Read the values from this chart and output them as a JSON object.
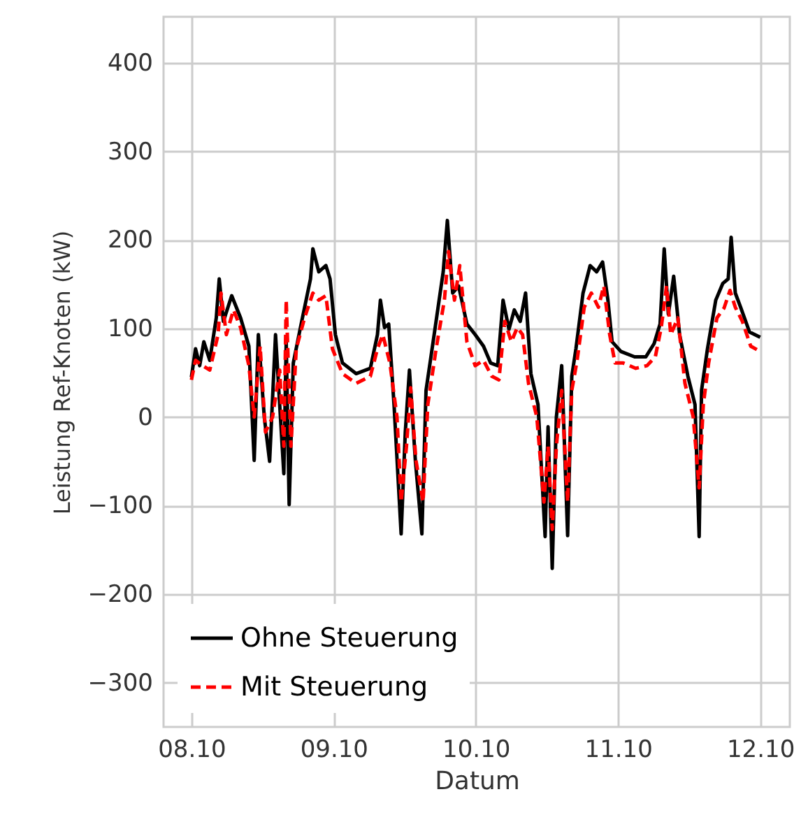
{
  "chart_data": {
    "type": "line",
    "xlabel": "Datum",
    "ylabel": "Leistung Ref-Knoten (kW)",
    "xlim": [
      "--10-07T19:18",
      "--10-12T05:00"
    ],
    "xticks": [
      {
        "value": "--10-08",
        "label": "08.10"
      },
      {
        "value": "--10-09",
        "label": "09.10"
      },
      {
        "value": "--10-10",
        "label": "10.10"
      },
      {
        "value": "--10-11",
        "label": "11.10"
      },
      {
        "value": "--10-12",
        "label": "12.10"
      }
    ],
    "ylim": [
      -350,
      452
    ],
    "yticks": [
      -300,
      -200,
      -100,
      0,
      100,
      200,
      300,
      400
    ],
    "grid": true,
    "legend": "bottom left",
    "series": [
      {
        "name": "Ohne Steuerung",
        "color": "#000000",
        "line_style": "solid",
        "x": [
          "--10-08T00:00",
          "--10-08T00:42",
          "--10-08T01:24",
          "--10-08T02:06",
          "--10-08T03:06",
          "--10-08T04:12",
          "--10-08T04:42",
          "--10-08T05:24",
          "--10-08T06:48",
          "--10-08T08:18",
          "--10-08T09:42",
          "--10-08T10:36",
          "--10-08T11:18",
          "--10-08T12:18",
          "--10-08T13:12",
          "--10-08T14:12",
          "--10-08T14:54",
          "--10-08T15:36",
          "--10-08T16:00",
          "--10-08T16:30",
          "--10-08T17:12",
          "--10-08T18:24",
          "--10-08T20:06",
          "--10-08T20:30",
          "--10-08T21:30",
          "--10-08T22:42",
          "--10-08T23:24",
          "--10-09T00:18",
          "--10-09T01:30",
          "--10-09T03:48",
          "--10-09T06:12",
          "--10-09T07:24",
          "--10-09T07:54",
          "--10-09T08:36",
          "--10-09T09:18",
          "--10-09T10:12",
          "--10-09T11:24",
          "--10-09T12:06",
          "--10-09T12:48",
          "--10-09T13:48",
          "--10-09T14:54",
          "--10-09T15:36",
          "--10-09T16:48",
          "--10-09T18:30",
          "--10-09T19:12",
          "--10-09T20:06",
          "--10-09T21:06",
          "--10-09T22:30",
          "--10-09T23:54",
          "--10-10T01:18",
          "--10-10T02:30",
          "--10-10T03:42",
          "--10-10T04:36",
          "--10-10T05:36",
          "--10-10T06:30",
          "--10-10T07:30",
          "--10-10T08:24",
          "--10-10T09:18",
          "--10-10T10:30",
          "--10-10T11:42",
          "--10-10T12:12",
          "--10-10T12:54",
          "--10-10T13:36",
          "--10-10T14:30",
          "--10-10T15:30",
          "--10-10T16:12",
          "--10-10T16:54",
          "--10-10T18:06",
          "--10-10T19:18",
          "--10-10T20:24",
          "--10-10T21:24",
          "--10-10T22:18",
          "--10-10T23:00",
          "--10-11T00:30",
          "--10-11T02:48",
          "--10-11T04:42",
          "--10-11T06:06",
          "--10-11T07:06",
          "--10-11T07:48",
          "--10-11T08:30",
          "--10-11T09:24",
          "--10-11T10:24",
          "--10-11T11:48",
          "--10-11T13:00",
          "--10-11T13:42",
          "--10-11T14:06",
          "--10-11T15:06",
          "--10-11T16:30",
          "--10-11T17:42",
          "--10-11T18:36",
          "--10-11T19:06",
          "--10-11T19:48",
          "--10-11T20:42",
          "--10-11T22:12",
          "--10-12T00:00"
        ],
        "values": [
          45,
          77,
          58,
          85,
          64,
          112,
          156,
          108,
          137,
          112,
          80,
          -49,
          93,
          0,
          -50,
          93,
          14,
          -64,
          85,
          -99,
          61,
          101,
          156,
          190,
          164,
          171,
          156,
          93,
          61,
          49,
          55,
          93,
          132,
          101,
          105,
          14,
          -132,
          -17,
          53,
          -49,
          -132,
          30,
          85,
          164,
          222,
          140,
          148,
          105,
          93,
          80,
          61,
          58,
          132,
          99,
          121,
          108,
          140,
          49,
          14,
          -135,
          -11,
          -171,
          0,
          58,
          -134,
          46,
          77,
          140,
          171,
          164,
          175,
          132,
          85,
          74,
          68,
          68,
          83,
          105,
          190,
          116,
          159,
          93,
          46,
          14,
          -135,
          30,
          77,
          132,
          151,
          156,
          203,
          140,
          124,
          96,
          90
        ]
      },
      {
        "name": "Mit Steuerung",
        "color": "#ff0000",
        "line_style": "dashed",
        "x": [
          "--10-08T00:00",
          "--10-08T00:42",
          "--10-08T01:54",
          "--10-08T03:06",
          "--10-08T04:30",
          "--10-08T05:00",
          "--10-08T05:54",
          "--10-08T07:06",
          "--10-08T08:18",
          "--10-08T09:42",
          "--10-08T10:36",
          "--10-08T11:36",
          "--10-08T12:30",
          "--10-08T13:42",
          "--10-08T14:54",
          "--10-08T15:36",
          "--10-08T16:00",
          "--10-08T16:48",
          "--10-08T17:42",
          "--10-08T19:06",
          "--10-08T20:30",
          "--10-08T21:30",
          "--10-08T22:42",
          "--10-08T23:48",
          "--10-09T01:30",
          "--10-09T03:48",
          "--10-09T06:12",
          "--10-09T07:24",
          "--10-09T08:18",
          "--10-09T09:30",
          "--10-09T10:42",
          "--10-09T11:24",
          "--10-09T12:18",
          "--10-09T13:00",
          "--10-09T13:54",
          "--10-09T15:06",
          "--10-09T15:54",
          "--10-09T17:18",
          "--10-09T18:42",
          "--10-09T19:24",
          "--10-09T20:24",
          "--10-09T21:18",
          "--10-09T22:30",
          "--10-09T23:54",
          "--10-10T01:18",
          "--10-10T02:42",
          "--10-10T03:54",
          "--10-10T04:54",
          "--10-10T06:00",
          "--10-10T07:00",
          "--10-10T07:54",
          "--10-10T08:54",
          "--10-10T10:18",
          "--10-10T11:30",
          "--10-10T12:12",
          "--10-10T12:54",
          "--10-10T13:36",
          "--10-10T14:30",
          "--10-10T15:30",
          "--10-10T16:12",
          "--10-10T17:06",
          "--10-10T18:18",
          "--10-10T19:30",
          "--10-10T20:42",
          "--10-10T21:36",
          "--10-10T22:36",
          "--10-10T23:30",
          "--10-11T00:54",
          "--10-11T03:00",
          "--10-11T04:54",
          "--10-11T06:18",
          "--10-11T07:18",
          "--10-11T08:12",
          "--10-11T08:54",
          "--10-11T10:06",
          "--10-11T11:18",
          "--10-11T12:42",
          "--10-11T13:42",
          "--10-11T14:24",
          "--10-11T15:18",
          "--10-11T16:42",
          "--10-11T17:54",
          "--10-11T18:54",
          "--10-11T19:48",
          "--10-11T21:00",
          "--10-11T22:24",
          "--10-12T00:00"
        ],
        "values": [
          42,
          64,
          58,
          53,
          93,
          140,
          93,
          121,
          101,
          58,
          0,
          80,
          -17,
          0,
          53,
          -33,
          132,
          -33,
          77,
          112,
          140,
          132,
          137,
          77,
          49,
          38,
          46,
          77,
          93,
          61,
          0,
          -96,
          -33,
          33,
          -49,
          -96,
          14,
          77,
          132,
          187,
          132,
          171,
          85,
          58,
          64,
          46,
          42,
          108,
          85,
          101,
          93,
          38,
          0,
          -96,
          -33,
          -127,
          -33,
          30,
          -96,
          30,
          64,
          124,
          140,
          124,
          148,
          93,
          61,
          61,
          55,
          58,
          68,
          101,
          148,
          93,
          112,
          38,
          0,
          -80,
          14,
          61,
          112,
          123,
          143,
          124,
          108,
          80,
          74
        ]
      }
    ]
  }
}
